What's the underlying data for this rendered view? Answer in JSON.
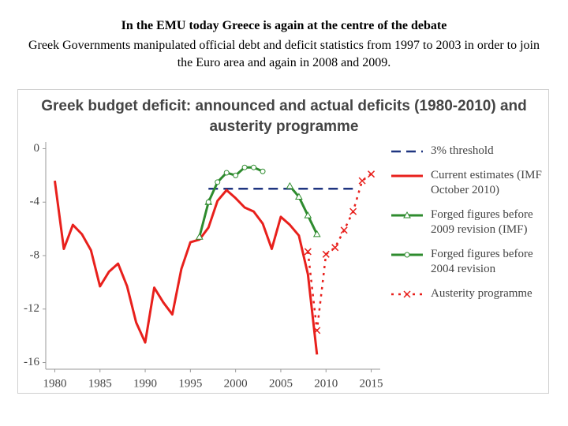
{
  "heading": "In the EMU today Greece is again at the centre of the debate",
  "subheading": "Greek Governments manipulated official debt and deficit statistics from 1997 to 2003 in order to join the Euro area and again in 2008 and 2009.",
  "chart_data": {
    "type": "line",
    "title": "Greek budget deficit: announced and actual deficits (1980-2010) and austerity programme",
    "xlim": [
      1979,
      2016
    ],
    "xticks": [
      1980,
      1985,
      1990,
      1995,
      2000,
      2005,
      2010,
      2015
    ],
    "ylim": [
      -16.5,
      0.5
    ],
    "yticks": [
      0,
      -4,
      -8,
      -12,
      -16
    ],
    "legend": "right",
    "grid": false,
    "series": [
      {
        "name": "3% threshold",
        "color": "#1f3580",
        "style": "dashed",
        "marker": "none",
        "x": [
          1997,
          2013
        ],
        "values": [
          -3,
          -3
        ]
      },
      {
        "name": "Current estimates (IMF October 2010)",
        "color": "#e8201c",
        "style": "solid",
        "marker": "none",
        "x": [
          1980,
          1981,
          1982,
          1983,
          1984,
          1985,
          1986,
          1987,
          1988,
          1989,
          1990,
          1991,
          1992,
          1993,
          1994,
          1995,
          1996,
          1997,
          1998,
          1999,
          2000,
          2001,
          2002,
          2003,
          2004,
          2005,
          2006,
          2007,
          2008,
          2009
        ],
        "values": [
          -2.4,
          -7.5,
          -5.7,
          -6.4,
          -7.6,
          -10.3,
          -9.2,
          -8.6,
          -10.3,
          -13.0,
          -14.5,
          -10.4,
          -11.5,
          -12.4,
          -9.0,
          -7.0,
          -6.8,
          -5.9,
          -3.9,
          -3.1,
          -3.7,
          -4.4,
          -4.7,
          -5.6,
          -7.5,
          -5.1,
          -5.7,
          -6.5,
          -9.4,
          -15.4
        ]
      },
      {
        "name": "Forged figures before 2009 revision (IMF)",
        "color": "#2e8b2e",
        "style": "solid",
        "marker": "triangle",
        "x": [
          1996,
          1997,
          1998,
          1999,
          2000,
          2001,
          2002,
          2003,
          2004,
          2005,
          2006,
          2007,
          2008,
          2009
        ],
        "values": [
          -6.6,
          -4.0,
          null,
          null,
          null,
          null,
          null,
          null,
          null,
          null,
          -2.8,
          -3.6,
          -5.0,
          -6.4
        ]
      },
      {
        "name": "Forged figures before 2004 revision",
        "color": "#2e8b2e",
        "style": "solid",
        "marker": "circle",
        "x": [
          1997,
          1998,
          1999,
          2000,
          2001,
          2002,
          2003
        ],
        "values": [
          -4.0,
          -2.5,
          -1.8,
          -2.0,
          -1.4,
          -1.4,
          -1.7
        ]
      },
      {
        "name": "Austerity programme",
        "color": "#e8201c",
        "style": "dotted",
        "marker": "x",
        "x": [
          2008,
          2009,
          2010,
          2011,
          2012,
          2013,
          2014,
          2015
        ],
        "values": [
          -7.7,
          -13.6,
          -7.9,
          -7.4,
          -6.1,
          -4.7,
          -2.4,
          -1.9
        ]
      }
    ]
  }
}
